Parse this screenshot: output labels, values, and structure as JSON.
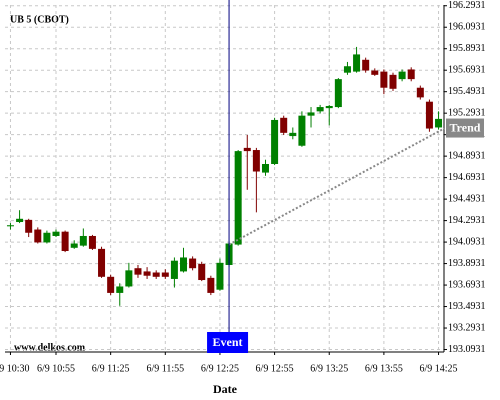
{
  "chart_data": {
    "type": "candlestick",
    "title": "UB 5 (CBOT)",
    "watermark": "www.delkos.com",
    "x_label": "Date",
    "x": [
      "6/9 10:30",
      "6/9 10:35",
      "6/9 10:40",
      "6/9 10:45",
      "6/9 10:50",
      "6/9 10:55",
      "6/9 11:00",
      "6/9 11:05",
      "6/9 11:10",
      "6/9 11:15",
      "6/9 11:20",
      "6/9 11:25",
      "6/9 11:30",
      "6/9 11:35",
      "6/9 11:40",
      "6/9 11:45",
      "6/9 11:50",
      "6/9 11:55",
      "6/9 12:00",
      "6/9 12:05",
      "6/9 12:10",
      "6/9 12:15",
      "6/9 12:20",
      "6/9 12:25",
      "6/9 12:30",
      "6/9 12:35",
      "6/9 12:40",
      "6/9 12:45",
      "6/9 12:50",
      "6/9 12:55",
      "6/9 13:00",
      "6/9 13:05",
      "6/9 13:10",
      "6/9 13:15",
      "6/9 13:20",
      "6/9 13:25",
      "6/9 13:30",
      "6/9 13:35",
      "6/9 13:40",
      "6/9 13:45",
      "6/9 13:50",
      "6/9 13:55",
      "6/9 14:00",
      "6/9 14:05",
      "6/9 14:10",
      "6/9 14:15",
      "6/9 14:20",
      "6/9 14:25"
    ],
    "open": [
      194.24,
      194.28,
      194.3,
      194.21,
      194.09,
      194.15,
      194.19,
      194.04,
      194.06,
      194.15,
      194.03,
      193.77,
      193.62,
      193.68,
      193.85,
      193.82,
      193.81,
      193.81,
      193.75,
      193.82,
      193.94,
      193.89,
      193.76,
      193.65,
      193.88,
      194.07,
      194.97,
      194.95,
      194.74,
      194.82,
      195.25,
      195.08,
      194.99,
      195.27,
      195.31,
      195.34,
      195.35,
      195.67,
      195.68,
      195.79,
      195.69,
      195.68,
      195.65,
      195.61,
      195.7,
      195.53,
      195.4,
      195.16
    ],
    "high": [
      194.27,
      194.39,
      194.31,
      194.23,
      194.2,
      194.21,
      194.2,
      194.11,
      194.22,
      194.16,
      194.05,
      193.79,
      193.71,
      193.9,
      193.88,
      193.86,
      193.83,
      193.84,
      193.95,
      194.04,
      193.96,
      193.91,
      193.78,
      193.94,
      194.09,
      194.95,
      195.09,
      194.97,
      194.86,
      195.25,
      195.27,
      195.16,
      195.31,
      195.35,
      195.37,
      195.37,
      195.62,
      195.77,
      195.91,
      195.81,
      195.71,
      195.7,
      195.67,
      195.7,
      195.72,
      195.55,
      195.42,
      195.31
    ],
    "low": [
      194.21,
      194.27,
      194.14,
      194.08,
      194.08,
      194.14,
      194.0,
      194.03,
      194.05,
      194.02,
      193.76,
      193.6,
      193.5,
      193.67,
      193.76,
      193.75,
      193.75,
      193.75,
      193.67,
      193.81,
      193.83,
      193.73,
      193.6,
      193.64,
      193.86,
      194.06,
      194.58,
      194.37,
      194.71,
      194.81,
      195.09,
      195.05,
      194.98,
      195.16,
      195.29,
      195.18,
      195.34,
      195.65,
      195.67,
      195.67,
      195.64,
      195.47,
      195.5,
      195.59,
      195.59,
      195.42,
      195.12,
      195.14
    ],
    "close": [
      194.25,
      194.31,
      194.18,
      194.09,
      194.18,
      194.19,
      194.01,
      194.08,
      194.15,
      194.03,
      193.77,
      193.62,
      193.68,
      193.83,
      193.79,
      193.78,
      193.77,
      193.77,
      193.92,
      193.95,
      193.85,
      193.74,
      193.62,
      193.9,
      194.08,
      194.94,
      194.94,
      194.75,
      194.82,
      195.23,
      195.11,
      195.11,
      195.27,
      195.3,
      195.35,
      195.36,
      195.61,
      195.73,
      195.84,
      195.69,
      195.65,
      195.53,
      195.52,
      195.68,
      195.61,
      195.44,
      195.15,
      195.24
    ],
    "up_color": "#008000",
    "down_color": "#800000",
    "xlim": [
      "6/9 10:27",
      "6/9 14:28"
    ],
    "xticks": [
      "6/9 10:30",
      "6/9 10:55",
      "6/9 11:25",
      "6/9 11:55",
      "6/9 12:25",
      "6/9 12:55",
      "6/9 13:25",
      "6/9 13:55",
      "6/9 14:25"
    ],
    "ylim": [
      193.07,
      196.3
    ],
    "yticks": [
      193.0931,
      193.2931,
      193.4931,
      193.6931,
      193.8931,
      194.0931,
      194.2931,
      194.4931,
      194.6931,
      194.8931,
      195.0931,
      195.2931,
      195.4931,
      195.6931,
      195.8931,
      196.0931,
      196.2931
    ],
    "grid": true,
    "event": {
      "label": "Event",
      "x": "6/9 12:30",
      "color": "#0000ff"
    },
    "trend": {
      "label": "Trend",
      "x": [
        "6/9 12:30",
        "6/9 14:28"
      ],
      "values": [
        194.07,
        195.15
      ],
      "color": "#888888"
    }
  }
}
